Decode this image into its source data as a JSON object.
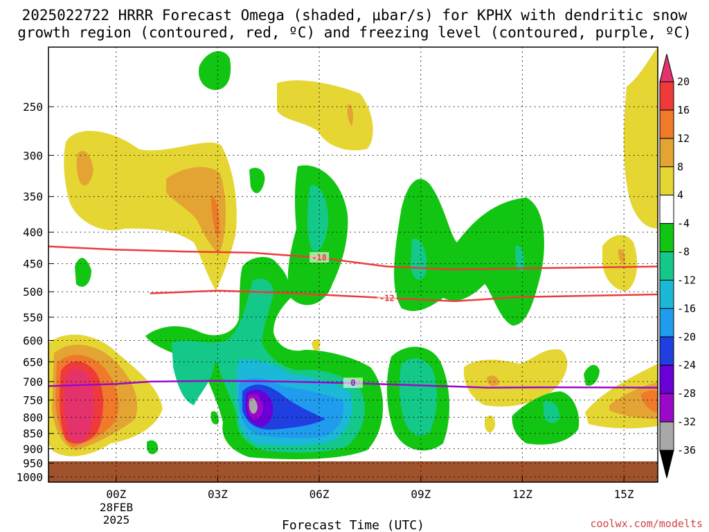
{
  "chart_data": {
    "type": "heatmap",
    "title_line1": "2025022722 HRRR Forecast Omega (shaded, μbar/s) for KPHX with dendritic snow",
    "title_line2": "growth region (contoured, red, ºC) and freezing level (contoured, purple, ºC)",
    "xlabel": "Forecast Time (UTC)",
    "x_ticks": [
      "00Z",
      "03Z",
      "06Z",
      "09Z",
      "12Z",
      "15Z"
    ],
    "x_tick_hours": [
      0,
      3,
      6,
      9,
      12,
      15
    ],
    "x_date_line1": "28FEB",
    "x_date_line2": "2025",
    "xlim": [
      -2,
      16
    ],
    "y_ticks": [
      "250",
      "300",
      "350",
      "400",
      "450",
      "500",
      "550",
      "600",
      "650",
      "700",
      "750",
      "800",
      "850",
      "900",
      "950",
      "1000"
    ],
    "y_tick_values": [
      250,
      300,
      350,
      400,
      450,
      500,
      550,
      600,
      650,
      700,
      750,
      800,
      850,
      900,
      950,
      1000
    ],
    "ylim_hpa": [
      200,
      1020
    ],
    "y_scale": "log-pressure",
    "grid": "dotted",
    "colorbar": {
      "labels": [
        "20",
        "16",
        "12",
        "8",
        "4",
        "-4",
        "-8",
        "-12",
        "-16",
        "-20",
        "-24",
        "-28",
        "-32",
        "-36"
      ],
      "colors": [
        "#e4336c",
        "#ee3a3a",
        "#ee7a2a",
        "#e3a433",
        "#e6d634",
        "#ffffff",
        "#12c512",
        "#14c88a",
        "#1cb8d8",
        "#209cee",
        "#1f3fe0",
        "#6a00d8",
        "#9a08c8",
        "#a8a8a8",
        "#000000"
      ]
    },
    "contours": [
      {
        "label": "-18",
        "color": "#ee3a3a",
        "points": [
          [
            -2,
            422
          ],
          [
            0,
            427
          ],
          [
            2,
            430
          ],
          [
            4,
            432
          ],
          [
            6,
            440
          ],
          [
            8,
            455
          ],
          [
            10,
            460
          ],
          [
            12,
            458
          ],
          [
            16,
            455
          ]
        ]
      },
      {
        "label": "-12",
        "color": "#ee3a3a",
        "points": [
          [
            1,
            503
          ],
          [
            3,
            498
          ],
          [
            5,
            502
          ],
          [
            8,
            512
          ],
          [
            10,
            518
          ],
          [
            12,
            510
          ],
          [
            16,
            505
          ]
        ]
      },
      {
        "label": "0",
        "color": "#9a08c8",
        "points": [
          [
            -2,
            712
          ],
          [
            0,
            706
          ],
          [
            1,
            700
          ],
          [
            3,
            698
          ],
          [
            5,
            700
          ],
          [
            7,
            704
          ],
          [
            9,
            710
          ],
          [
            11,
            716
          ],
          [
            13,
            715
          ],
          [
            16,
            716
          ]
        ]
      }
    ],
    "surface_hpa": 965,
    "credit": "coolwx.com/modelts"
  }
}
